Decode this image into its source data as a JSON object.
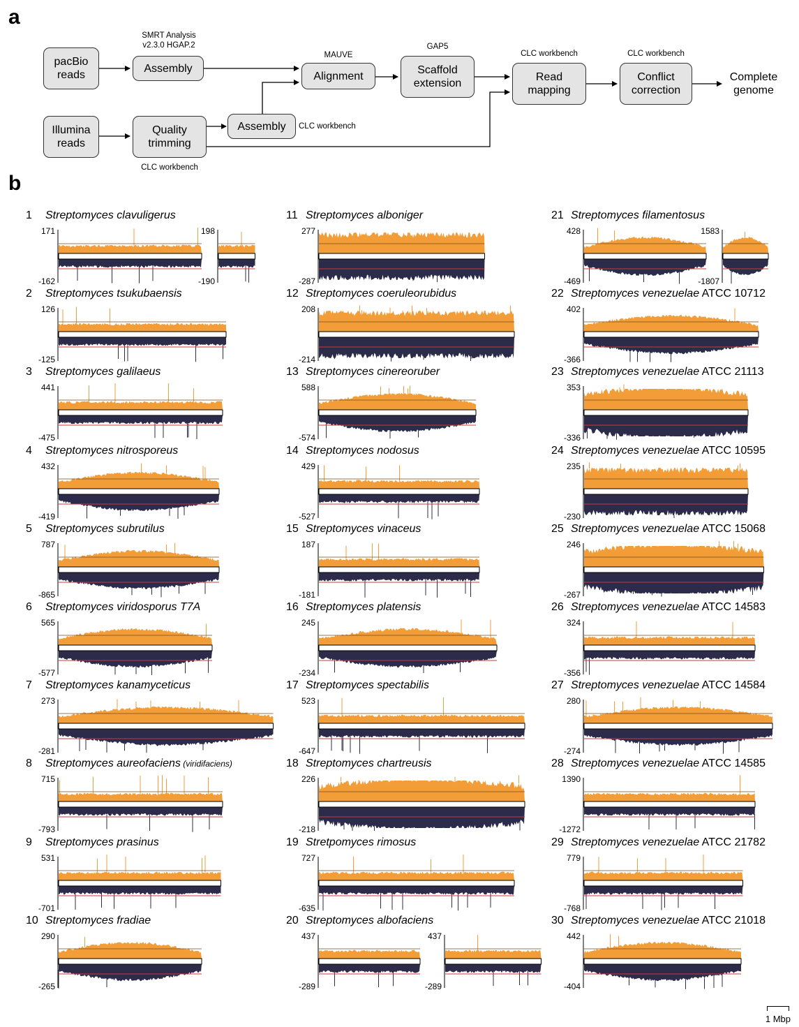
{
  "panels": {
    "a": "a",
    "b": "b"
  },
  "flow": {
    "pacbio": "pacBio\nreads",
    "illumina": "Illumina\nreads",
    "assembly1": "Assembly",
    "quality": "Quality\ntrimming",
    "assembly2": "Assembly",
    "alignment": "Alignment",
    "scaffold": "Scaffold\nextension",
    "readmap": "Read\nmapping",
    "conflict": "Conflict\ncorrection",
    "complete": "Complete\ngenome",
    "cap_smrt": "SMRT Analysis\nv2.3.0 HGAP.2",
    "cap_mauve": "MAUVE",
    "cap_gap5": "GAP5",
    "cap_clc_readmap": "CLC workbench",
    "cap_clc_conflict": "CLC workbench",
    "cap_clc_assembly2": "CLC workbench",
    "cap_clc_quality": "CLC workbench"
  },
  "colors": {
    "positive": "#f29d38",
    "negative": "#2d2b4a",
    "baseline": "#000000",
    "meanline": "#d2363a"
  },
  "scalebar": "1 Mbp",
  "genomes": [
    {
      "n": "1",
      "genus": "Streptomyces",
      "species": "clavuligerus",
      "suffix": "",
      "max": "171",
      "min": "-162",
      "max2": "198",
      "min2": "-190",
      "len": 8.2,
      "len2": 2.1,
      "shape": "flat"
    },
    {
      "n": "2",
      "genus": "Streptomyces",
      "species": "tsukubaensis",
      "suffix": "",
      "max": "126",
      "min": "-125",
      "len": 9.6,
      "shape": "flat"
    },
    {
      "n": "3",
      "genus": "Streptomyces",
      "species": "galilaeus",
      "suffix": "",
      "max": "441",
      "min": "-475",
      "len": 9.4,
      "shape": "flat"
    },
    {
      "n": "4",
      "genus": "Streptomyces",
      "species": "nitrosporeus",
      "suffix": "",
      "max": "432",
      "min": "-419",
      "len": 9.2,
      "shape": "arc"
    },
    {
      "n": "5",
      "genus": "Streptomyces",
      "species": "subrutilus",
      "suffix": "",
      "max": "787",
      "min": "-865",
      "len": 9.2,
      "shape": "arc"
    },
    {
      "n": "6",
      "genus": "Streptomyces",
      "species": "viridosporus T7A",
      "suffix": "",
      "max": "565",
      "min": "-577",
      "len": 8.8,
      "shape": "arc"
    },
    {
      "n": "7",
      "genus": "Streptomyces",
      "species": "kanamyceticus",
      "suffix": "",
      "max": "273",
      "min": "-281",
      "len": 12.3,
      "shape": "arc"
    },
    {
      "n": "8",
      "genus": "Streptomyces",
      "species": "aureofaciens",
      "suffix": "(viridifaciens)",
      "max": "715",
      "min": "-793",
      "len": 9.4,
      "shape": "flat"
    },
    {
      "n": "9",
      "genus": "Streptomyces",
      "species": "prasinus",
      "suffix": "",
      "max": "531",
      "min": "-701",
      "len": 9.3,
      "shape": "flat"
    },
    {
      "n": "10",
      "genus": "Streptomyces",
      "species": "fradiae",
      "suffix": "",
      "max": "290",
      "min": "-265",
      "len": 8.2,
      "shape": "arc"
    },
    {
      "n": "11",
      "genus": "Streptomyces",
      "species": "alboniger",
      "suffix": "",
      "max": "277",
      "min": "-287",
      "len": 9.5,
      "shape": "dense"
    },
    {
      "n": "12",
      "genus": "Streptomyces",
      "species": "coeruleorubidus",
      "suffix": "",
      "max": "208",
      "min": "-214",
      "len": 11.2,
      "shape": "dense"
    },
    {
      "n": "13",
      "genus": "Streptomyces",
      "species": "cinereoruber",
      "suffix": "",
      "max": "588",
      "min": "-574",
      "len": 9.0,
      "shape": "arc"
    },
    {
      "n": "14",
      "genus": "Streptomyces",
      "species": "nodosus",
      "suffix": "",
      "max": "429",
      "min": "-527",
      "len": 9.2,
      "shape": "flat"
    },
    {
      "n": "15",
      "genus": "Streptomyces",
      "species": "vinaceus",
      "suffix": "",
      "max": "187",
      "min": "-181",
      "len": 9.2,
      "shape": "flat"
    },
    {
      "n": "16",
      "genus": "Streptomyces",
      "species": "platensis",
      "suffix": "",
      "max": "245",
      "min": "-234",
      "len": 10.2,
      "shape": "arc"
    },
    {
      "n": "17",
      "genus": "Streptomyces",
      "species": "spectabilis",
      "suffix": "",
      "max": "523",
      "min": "-647",
      "len": 11.8,
      "shape": "flat"
    },
    {
      "n": "18",
      "genus": "Streptomyces",
      "species": "chartreusis",
      "suffix": "",
      "max": "226",
      "min": "-218",
      "len": 11.8,
      "shape": "arcdense"
    },
    {
      "n": "19",
      "genus": "Stretpomyces",
      "species": "rimosus",
      "suffix": "",
      "max": "727",
      "min": "-635",
      "len": 11.2,
      "shape": "flat"
    },
    {
      "n": "20",
      "genus": "Streptomyces",
      "species": "albofaciens",
      "suffix": "",
      "max": "437",
      "min": "-289",
      "max2": "437",
      "min2": "-289",
      "len": 5.8,
      "len2": 5.5,
      "shape": "flat"
    },
    {
      "n": "21",
      "genus": "Streptomyces",
      "species": "filamentosus",
      "suffix": "",
      "max": "428",
      "min": "-469",
      "max2": "1583",
      "min2": "-1807",
      "len": 7.0,
      "len2": 2.6,
      "shape": "arc"
    },
    {
      "n": "22",
      "genus": "Streptomyces",
      "species": "venezuelae",
      "suffix": "ATCC 10712",
      "max": "402",
      "min": "-366",
      "len": 10.0,
      "shape": "arc"
    },
    {
      "n": "23",
      "genus": "Streptomyces",
      "species": "venezuelae",
      "suffix": "ATCC 21113",
      "max": "353",
      "min": "-336",
      "len": 9.4,
      "shape": "arcdense"
    },
    {
      "n": "24",
      "genus": "Streptomyces",
      "species": "venezuelae",
      "suffix": "ATCC 10595",
      "max": "235",
      "min": "-230",
      "len": 9.4,
      "shape": "dense"
    },
    {
      "n": "25",
      "genus": "Streptomyces",
      "species": "venezuelae",
      "suffix": "ATCC 15068",
      "max": "246",
      "min": "-267",
      "len": 10.3,
      "shape": "arcdense"
    },
    {
      "n": "26",
      "genus": "Streptomyces",
      "species": "venezuelae",
      "suffix": "ATCC 14583",
      "max": "324",
      "min": "-356",
      "len": 9.8,
      "shape": "flat"
    },
    {
      "n": "27",
      "genus": "Streptomyces",
      "species": "venezuelae",
      "suffix": "ATCC 14584",
      "max": "280",
      "min": "-274",
      "len": 10.8,
      "shape": "arc"
    },
    {
      "n": "28",
      "genus": "Streptomyces",
      "species": "venezuelae",
      "suffix": "ATCC 14585",
      "max": "1390",
      "min": "-1272",
      "len": 9.8,
      "shape": "flat"
    },
    {
      "n": "29",
      "genus": "Streptomyces",
      "species": "venezuelae",
      "suffix": "ATCC 21782",
      "max": "779",
      "min": "-768",
      "len": 9.1,
      "shape": "flat"
    },
    {
      "n": "30",
      "genus": "Streptomyces",
      "species": "venezuelae",
      "suffix": "ATCC 21018",
      "max": "442",
      "min": "-404",
      "len": 9.0,
      "shape": "arc"
    }
  ]
}
